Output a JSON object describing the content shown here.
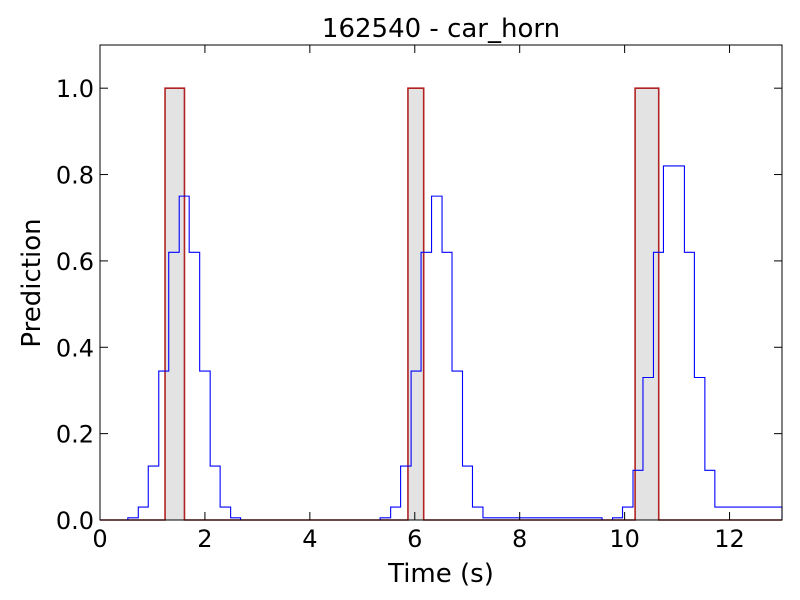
{
  "chart_data": {
    "type": "line",
    "title": "162540 - car_horn",
    "xlabel": "Time (s)",
    "ylabel": "Prediction",
    "xlim": [
      0,
      13
    ],
    "ylim": [
      0,
      1.1
    ],
    "xticks": [
      0,
      2,
      4,
      6,
      8,
      10,
      12
    ],
    "xtick_labels": [
      "0",
      "2",
      "4",
      "6",
      "8",
      "10",
      "12"
    ],
    "yticks": [
      0.0,
      0.2,
      0.4,
      0.6,
      0.8,
      1.0
    ],
    "ytick_labels": [
      "0.0",
      "0.2",
      "0.4",
      "0.6",
      "0.8",
      "1.0"
    ],
    "grid": false,
    "ground_truth_color": "#b22222",
    "prediction_color": "#0000ff",
    "fill_color": "#e3e3e3",
    "ground_truth_segments": [
      {
        "start": 1.24,
        "end": 1.61
      },
      {
        "start": 5.87,
        "end": 6.17
      },
      {
        "start": 10.2,
        "end": 10.65
      }
    ],
    "prediction": {
      "x": [
        0.0,
        0.53,
        0.73,
        0.92,
        1.12,
        1.31,
        1.51,
        1.7,
        1.9,
        2.1,
        2.29,
        2.49,
        2.68,
        5.15,
        5.34,
        5.54,
        5.73,
        5.93,
        6.12,
        6.32,
        6.52,
        6.71,
        6.91,
        7.1,
        7.3,
        9.57,
        9.77,
        9.96,
        10.16,
        10.35,
        10.55,
        10.74,
        10.94,
        11.14,
        11.33,
        11.53,
        11.72,
        13.0
      ],
      "y": [
        0.0,
        0.005,
        0.03,
        0.125,
        0.345,
        0.62,
        0.75,
        0.62,
        0.345,
        0.125,
        0.03,
        0.005,
        0.0,
        0.0,
        0.005,
        0.03,
        0.125,
        0.345,
        0.62,
        0.75,
        0.62,
        0.345,
        0.125,
        0.03,
        0.005,
        0.0,
        0.005,
        0.03,
        0.115,
        0.33,
        0.62,
        0.82,
        0.82,
        0.62,
        0.33,
        0.115,
        0.03,
        0.0
      ]
    }
  }
}
